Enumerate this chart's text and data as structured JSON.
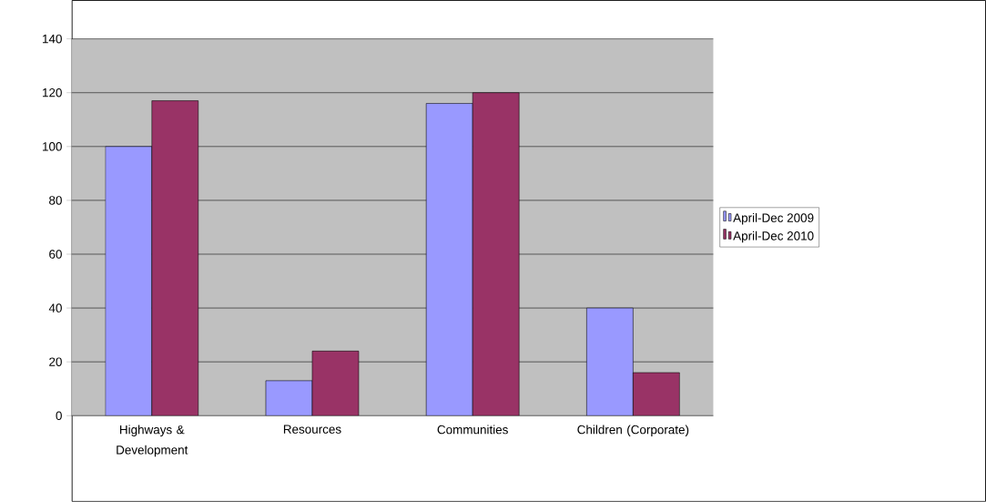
{
  "chart_data": {
    "type": "bar",
    "categories": [
      "Highways & Development",
      "Resources",
      "Communities",
      "Children (Corporate)"
    ],
    "series": [
      {
        "name": "April-Dec 2009",
        "color": "#9999ff",
        "values": [
          100,
          13,
          116,
          40
        ]
      },
      {
        "name": "April-Dec 2010",
        "color": "#993366",
        "values": [
          117,
          24,
          120,
          16
        ]
      }
    ],
    "ylim": [
      0,
      140
    ],
    "yticks": [
      0,
      20,
      40,
      60,
      80,
      100,
      120,
      140
    ],
    "grid": "y",
    "legend": "right"
  }
}
